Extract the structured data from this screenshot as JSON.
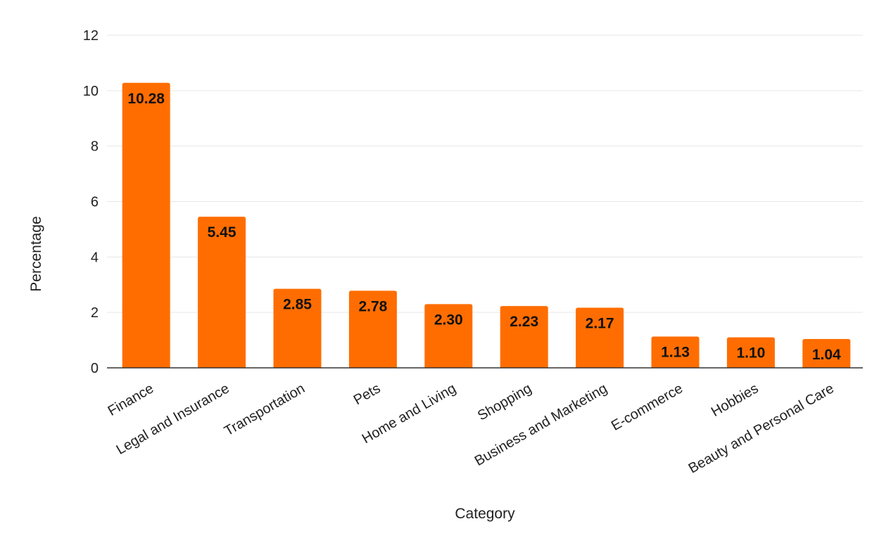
{
  "chart_data": {
    "type": "bar",
    "title": "",
    "xlabel": "Category",
    "ylabel": "Percentage",
    "categories": [
      "Finance",
      "Legal and Insurance",
      "Transportation",
      "Pets",
      "Home and Living",
      "Shopping",
      "Business and Marketing",
      "E-commerce",
      "Hobbies",
      "Beauty and Personal Care"
    ],
    "values": [
      10.28,
      5.45,
      2.85,
      2.78,
      2.3,
      2.23,
      2.17,
      1.13,
      1.1,
      1.04
    ],
    "data_labels": [
      "10.28",
      "5.45",
      "2.85",
      "2.78",
      "2.30",
      "2.23",
      "2.17",
      "1.13",
      "1.10",
      "1.04"
    ],
    "ylim": [
      0,
      12
    ],
    "yticks": [
      0,
      2,
      4,
      6,
      8,
      10,
      12
    ],
    "grid": true,
    "legend": "none",
    "bar_color": "#ff6d01"
  }
}
